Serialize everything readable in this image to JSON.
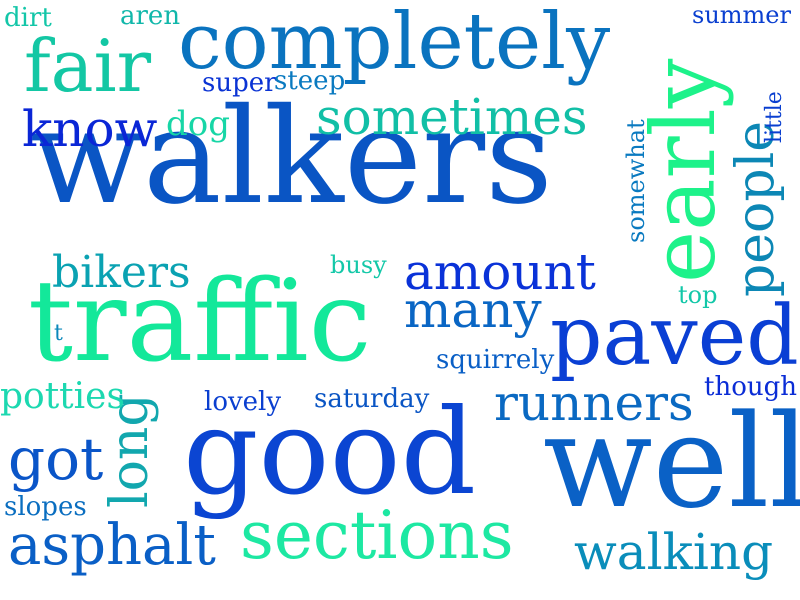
{
  "words": [
    {
      "text": "walkers",
      "color": "#0a55c4"
    },
    {
      "text": "traffic",
      "color": "#13e89a"
    },
    {
      "text": "good",
      "color": "#0b45d2"
    },
    {
      "text": "well",
      "color": "#0a61c6"
    },
    {
      "text": "early",
      "color": "#1df28a"
    },
    {
      "text": "completely",
      "color": "#0a73bf"
    },
    {
      "text": "sections",
      "color": "#1de8a2"
    },
    {
      "text": "paved",
      "color": "#0a3fd4"
    },
    {
      "text": "amount",
      "color": "#0a32d8"
    },
    {
      "text": "fair",
      "color": "#13c7a4"
    },
    {
      "text": "sometimes",
      "color": "#11bfa6"
    },
    {
      "text": "walking",
      "color": "#0a8dba"
    },
    {
      "text": "asphalt",
      "color": "#0a5fc6"
    },
    {
      "text": "runners",
      "color": "#0a69c2"
    },
    {
      "text": "many",
      "color": "#0a66c4"
    },
    {
      "text": "people",
      "color": "#0c87b5"
    },
    {
      "text": "know",
      "color": "#0a26d6"
    },
    {
      "text": "bikers",
      "color": "#0aa2b2"
    },
    {
      "text": "got",
      "color": "#0a55c8"
    },
    {
      "text": "long",
      "color": "#12a7ae"
    },
    {
      "text": "potties",
      "color": "#1cd8b0"
    },
    {
      "text": "dog",
      "color": "#17d6a6"
    },
    {
      "text": "saturday",
      "color": "#0a55c4"
    },
    {
      "text": "lovely",
      "color": "#0a3fd0"
    },
    {
      "text": "squirrely",
      "color": "#0a5fc6"
    },
    {
      "text": "though",
      "color": "#0a2cd6"
    },
    {
      "text": "slopes",
      "color": "#0a6ec0"
    },
    {
      "text": "super",
      "color": "#0a33d4"
    },
    {
      "text": "steep",
      "color": "#0a7ac0"
    },
    {
      "text": "busy",
      "color": "#14c8a8"
    },
    {
      "text": "top",
      "color": "#12c7a8"
    },
    {
      "text": "summer",
      "color": "#0a3fd0"
    },
    {
      "text": "aren",
      "color": "#11b7aa"
    },
    {
      "text": "dirt",
      "color": "#13c6a8"
    },
    {
      "text": "somewhat",
      "color": "#0a7ac0"
    },
    {
      "text": "little",
      "color": "#0a3fd0"
    },
    {
      "text": "t",
      "color": "#0a88bb"
    }
  ]
}
